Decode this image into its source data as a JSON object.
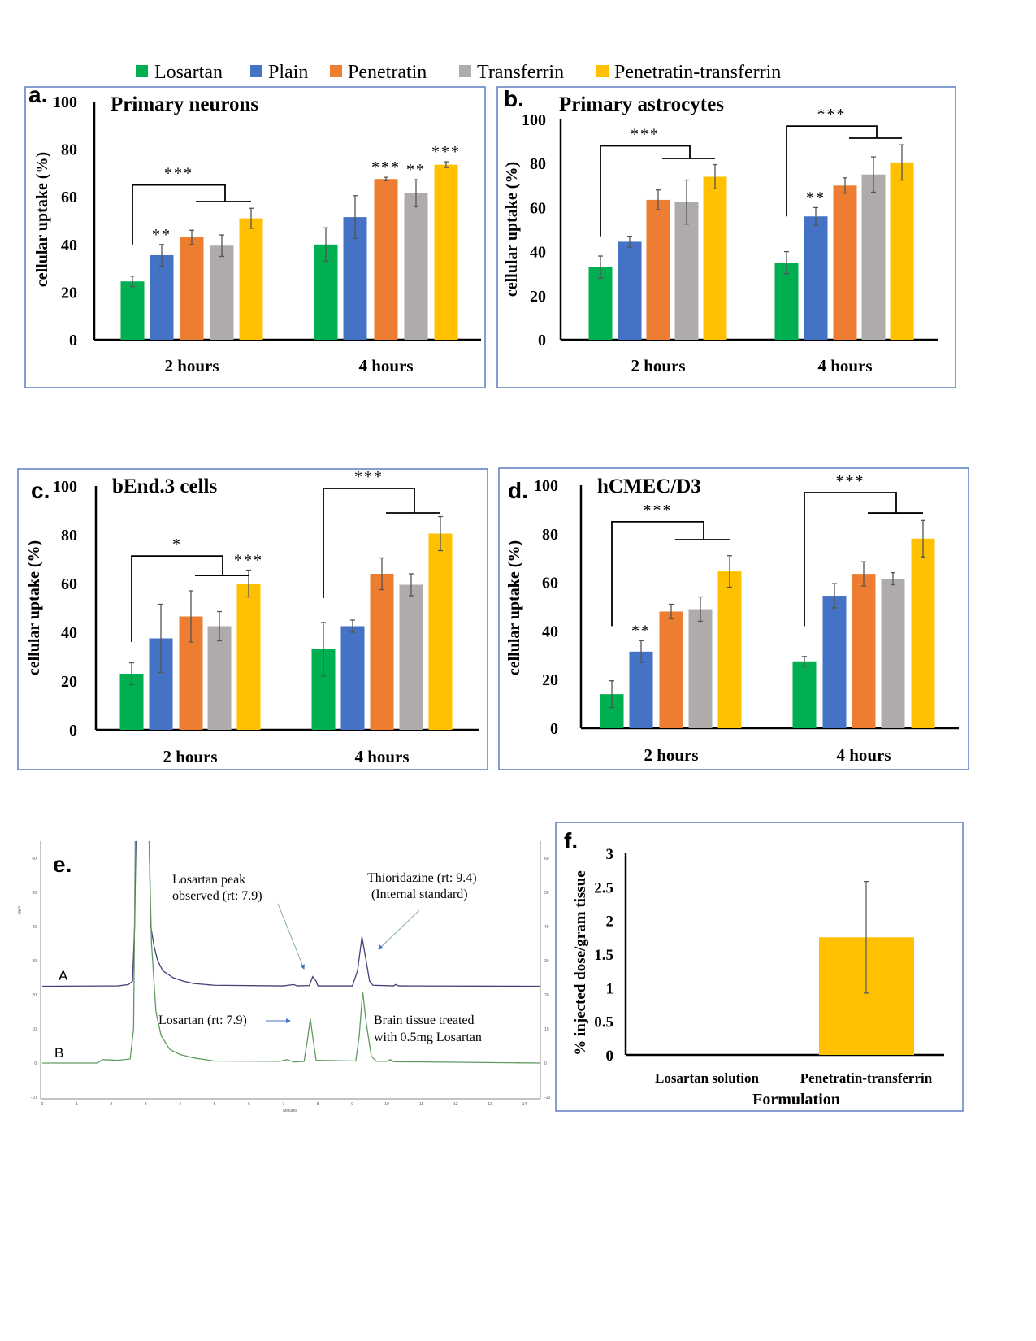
{
  "legend": [
    {
      "label": "Losartan",
      "color": "#00b050"
    },
    {
      "label": "Plain",
      "color": "#4472c4"
    },
    {
      "label": "Penetratin",
      "color": "#ed7d31"
    },
    {
      "label": "Transferrin",
      "color": "#afabab"
    },
    {
      "label": "Penetratin-transferrin",
      "color": "#ffc000"
    }
  ],
  "chart_data": [
    {
      "panel": "a.",
      "type": "bar",
      "title": "Primary neurons",
      "ylabel": "cellular uptake (%)",
      "ylim": [
        0,
        100
      ],
      "yticks": [
        0,
        20,
        40,
        60,
        80,
        100
      ],
      "categories": [
        "2 hours",
        "4 hours"
      ],
      "series": [
        {
          "name": "Losartan",
          "values": [
            24.5,
            40
          ],
          "errors": [
            2.2,
            7
          ]
        },
        {
          "name": "Plain",
          "values": [
            35.5,
            51.5
          ],
          "errors": [
            4.5,
            9
          ]
        },
        {
          "name": "Penetratin",
          "values": [
            43,
            67.5
          ],
          "errors": [
            3,
            0.7
          ]
        },
        {
          "name": "Transferrin",
          "values": [
            39.5,
            61.5
          ],
          "errors": [
            4.5,
            5.7
          ]
        },
        {
          "name": "Penetratin-transferrin",
          "values": [
            51,
            73.5
          ],
          "errors": [
            4.2,
            1.2
          ]
        }
      ],
      "annotations": [
        {
          "category": 0,
          "series": 1,
          "label": "**"
        },
        {
          "category": 1,
          "series": 2,
          "label": "***"
        },
        {
          "category": 1,
          "series": 3,
          "label": "**"
        },
        {
          "category": 1,
          "series": 4,
          "label": "***"
        }
      ],
      "brackets": [
        {
          "category": 0,
          "start": 40,
          "top": 65,
          "drop": 58,
          "label": "***"
        }
      ]
    },
    {
      "panel": "b.",
      "type": "bar",
      "title": "Primary astrocytes",
      "ylabel": "cellular uptake (%)",
      "ylim": [
        0,
        100
      ],
      "yticks": [
        0,
        20,
        40,
        60,
        80,
        100
      ],
      "categories": [
        "2 hours",
        "4 hours"
      ],
      "series": [
        {
          "name": "Losartan",
          "values": [
            33,
            35
          ],
          "errors": [
            5,
            5
          ]
        },
        {
          "name": "Plain",
          "values": [
            44.5,
            56
          ],
          "errors": [
            2.5,
            4
          ]
        },
        {
          "name": "Penetratin",
          "values": [
            63.5,
            70
          ],
          "errors": [
            4.5,
            3.5
          ]
        },
        {
          "name": "Transferrin",
          "values": [
            62.5,
            75
          ],
          "errors": [
            10,
            8
          ]
        },
        {
          "name": "Penetratin-transferrin",
          "values": [
            74,
            80.5
          ],
          "errors": [
            5.5,
            8
          ]
        }
      ],
      "annotations": [
        {
          "category": 1,
          "series": 1,
          "label": "**"
        }
      ],
      "brackets": [
        {
          "category": 0,
          "start": 47,
          "top": 88,
          "drop": 82.3,
          "label": "***"
        },
        {
          "category": 1,
          "start": 56,
          "top": 97,
          "drop": 91.5,
          "label": "***"
        }
      ]
    },
    {
      "panel": "c.",
      "type": "bar",
      "title": "bEnd.3 cells",
      "ylabel": "cellular uptake (%)",
      "ylim": [
        0,
        100
      ],
      "yticks": [
        0,
        20,
        40,
        60,
        80,
        100
      ],
      "categories": [
        "2 hours",
        "4 hours"
      ],
      "series": [
        {
          "name": "Losartan",
          "values": [
            23,
            33
          ],
          "errors": [
            4.5,
            11
          ]
        },
        {
          "name": "Plain",
          "values": [
            37.5,
            42.5
          ],
          "errors": [
            14,
            2.5
          ]
        },
        {
          "name": "Penetratin",
          "values": [
            46.5,
            64
          ],
          "errors": [
            10.5,
            6.5
          ]
        },
        {
          "name": "Transferrin",
          "values": [
            42.5,
            59.5
          ],
          "errors": [
            6,
            4.5
          ]
        },
        {
          "name": "Penetratin-transferrin",
          "values": [
            60,
            80.5
          ],
          "errors": [
            5.5,
            7
          ]
        }
      ],
      "annotations": [
        {
          "category": 0,
          "series": 4,
          "label": "***"
        }
      ],
      "brackets": [
        {
          "category": 0,
          "start": 36,
          "top": 71.3,
          "drop": 63.3,
          "label": "*"
        },
        {
          "category": 1,
          "start": 54,
          "top": 99,
          "drop": 89,
          "label": "***"
        }
      ]
    },
    {
      "panel": "d.",
      "type": "bar",
      "title": "hCMEC/D3",
      "ylabel": "cellular uptake (%)",
      "ylim": [
        0,
        100
      ],
      "yticks": [
        0,
        20,
        40,
        60,
        80,
        100
      ],
      "categories": [
        "2 hours",
        "4 hours"
      ],
      "series": [
        {
          "name": "Losartan",
          "values": [
            14,
            27.5
          ],
          "errors": [
            5.5,
            2
          ]
        },
        {
          "name": "Plain",
          "values": [
            31.5,
            54.5
          ],
          "errors": [
            4.5,
            5
          ]
        },
        {
          "name": "Penetratin",
          "values": [
            48,
            63.5
          ],
          "errors": [
            3,
            5
          ]
        },
        {
          "name": "Transferrin",
          "values": [
            49,
            61.5
          ],
          "errors": [
            5,
            2.5
          ]
        },
        {
          "name": "Penetratin-transferrin",
          "values": [
            64.5,
            78
          ],
          "errors": [
            6.5,
            7.5
          ]
        }
      ],
      "annotations": [
        {
          "category": 0,
          "series": 1,
          "label": "**"
        }
      ],
      "brackets": [
        {
          "category": 0,
          "start": 42,
          "top": 85,
          "drop": 77.6,
          "label": "***"
        },
        {
          "category": 1,
          "start": 42,
          "top": 97,
          "drop": 88.6,
          "label": "***"
        }
      ]
    },
    {
      "panel": "e.",
      "type": "line",
      "xlabel": "Minutes",
      "ylabel": "mAU",
      "xlim": [
        0,
        14.5
      ],
      "ylim": [
        -10,
        65
      ],
      "xticks": [
        0,
        1,
        2,
        3,
        4,
        5,
        6,
        7,
        8,
        9,
        10,
        11,
        12,
        13,
        14
      ],
      "yticks": [
        -10,
        0,
        10,
        20,
        30,
        40,
        50,
        60
      ],
      "series": [
        {
          "name": "A",
          "color": "#40407a",
          "points": [
            [
              0,
              22.5
            ],
            [
              2.2,
              22.6
            ],
            [
              2.5,
              23
            ],
            [
              2.62,
              24
            ],
            [
              2.68,
              40
            ],
            [
              2.72,
              66
            ],
            [
              3.1,
              66
            ],
            [
              3.15,
              40
            ],
            [
              3.25,
              34
            ],
            [
              3.35,
              30
            ],
            [
              3.5,
              27
            ],
            [
              3.8,
              25
            ],
            [
              4.1,
              24
            ],
            [
              4.4,
              23.3
            ],
            [
              5,
              22.8
            ],
            [
              7,
              22.6
            ],
            [
              7.3,
              23
            ],
            [
              7.4,
              22.6
            ],
            [
              7.75,
              22.7
            ],
            [
              7.85,
              25.3
            ],
            [
              7.95,
              24
            ],
            [
              8,
              22.6
            ],
            [
              9.0,
              22.6
            ],
            [
              9.15,
              27
            ],
            [
              9.28,
              37
            ],
            [
              9.4,
              30
            ],
            [
              9.5,
              24
            ],
            [
              9.6,
              22.8
            ],
            [
              10.2,
              22.6
            ],
            [
              10.25,
              23
            ],
            [
              10.35,
              22.6
            ],
            [
              14.5,
              22.5
            ]
          ]
        },
        {
          "name": "B",
          "color": "#5f9b5f",
          "points": [
            [
              0,
              0
            ],
            [
              1.6,
              0
            ],
            [
              1.75,
              1
            ],
            [
              2.2,
              0.8
            ],
            [
              2.55,
              1.2
            ],
            [
              2.65,
              10
            ],
            [
              2.7,
              66
            ],
            [
              3.1,
              66
            ],
            [
              3.17,
              35
            ],
            [
              3.3,
              15
            ],
            [
              3.45,
              8
            ],
            [
              3.7,
              4
            ],
            [
              4,
              2.5
            ],
            [
              4.4,
              1.5
            ],
            [
              5,
              0.6
            ],
            [
              6.9,
              0.5
            ],
            [
              7.1,
              1
            ],
            [
              7.3,
              0.3
            ],
            [
              7.6,
              0.5
            ],
            [
              7.7,
              7
            ],
            [
              7.78,
              13
            ],
            [
              7.86,
              7
            ],
            [
              7.95,
              0.8
            ],
            [
              9.1,
              0.6
            ],
            [
              9.2,
              8
            ],
            [
              9.3,
              21
            ],
            [
              9.4,
              12
            ],
            [
              9.55,
              2
            ],
            [
              9.7,
              0.5
            ],
            [
              10.0,
              0.5
            ],
            [
              10.1,
              1.0
            ],
            [
              10.2,
              0.4
            ],
            [
              14.5,
              0
            ]
          ]
        }
      ],
      "annotations": {
        "losartan_peak": [
          "Losartan peak",
          "observed (rt: 7.9)"
        ],
        "thioridazine": [
          "Thioridazine  (rt: 9.4)",
          "(Internal standard)"
        ],
        "losartan_b": "Losartan (rt: 7.9)",
        "brain_tissue": [
          "Brain tissue treated",
          "with 0.5mg Losartan"
        ]
      }
    },
    {
      "panel": "f.",
      "type": "bar",
      "xlabel": "Formulation",
      "ylabel": "% injected dose/gram tissue",
      "ylim": [
        0,
        3
      ],
      "yticks": [
        0,
        0.5,
        1,
        1.5,
        2,
        2.5,
        3
      ],
      "categories": [
        "Losartan solution",
        "Penetratin-transferrin"
      ],
      "values": [
        0,
        1.75
      ],
      "errors": [
        0,
        0.83
      ],
      "colors": [
        "#ffc000",
        "#ffc000"
      ]
    }
  ]
}
